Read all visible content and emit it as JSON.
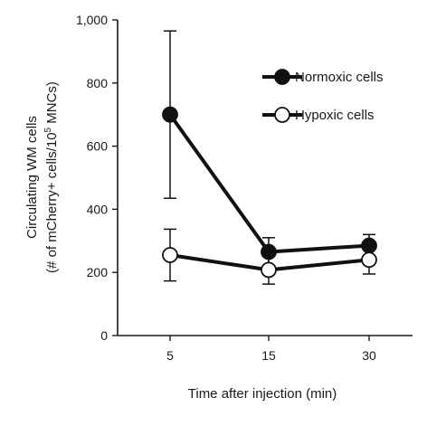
{
  "chart_data": {
    "type": "line",
    "title": "",
    "xlabel": "Time after injection (min)",
    "ylabel_line1": "Circulating WM cells",
    "ylabel_line2_prefix": "(# of mCherry+ cells/10",
    "ylabel_line2_sup": "5",
    "ylabel_line2_suffix": " MNCs)",
    "categories": [
      "5",
      "15",
      "30"
    ],
    "ylim": [
      0,
      1000
    ],
    "yticks": [
      0,
      200,
      400,
      600,
      800,
      1000
    ],
    "ytick_labels": [
      "0",
      "200",
      "400",
      "600",
      "800",
      "1,000"
    ],
    "grid": false,
    "legend_position": "top-right",
    "series": [
      {
        "name": "Normoxic cells",
        "marker": "filled-circle",
        "values": [
          700,
          265,
          285
        ],
        "error": [
          265,
          45,
          35
        ]
      },
      {
        "name": "Hypoxic cells",
        "marker": "open-circle",
        "values": [
          255,
          208,
          240
        ],
        "error": [
          82,
          45,
          45
        ]
      }
    ]
  }
}
